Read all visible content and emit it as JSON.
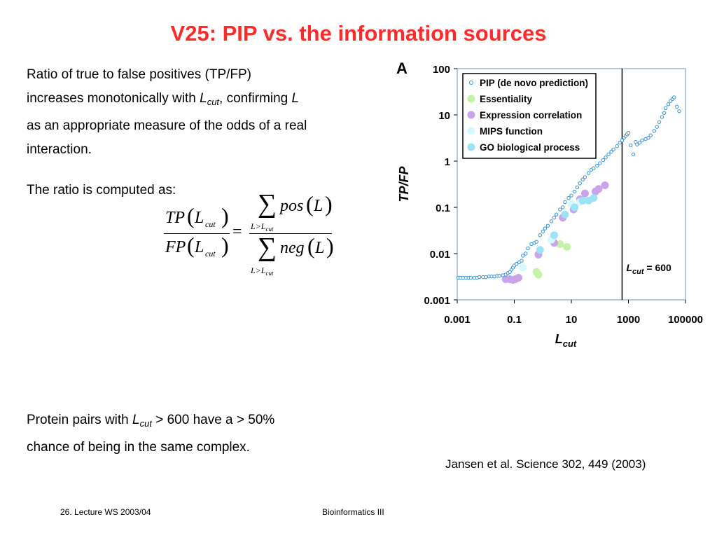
{
  "slide": {
    "title": "V25: PIP vs. the information sources",
    "para1_a": "Ratio of true to false positives (TP/FP)",
    "para1_b": "increases monotonically with ",
    "para1_L": "L",
    "para1_cut": "cut",
    "para1_c": ", confirming ",
    "para1_L2": "L",
    "para1_d": "as an appropriate measure of the odds of a real",
    "para1_e": "interaction.",
    "para2": "The ratio is computed as:",
    "para3_a": "Protein pairs with ",
    "para3_L": "L",
    "para3_cut": "cut",
    "para3_b": " > 600 have a > 50%",
    "para3_c": "chance of being in the same complex.",
    "citation": "Jansen et al. Science 302, 449 (2003)",
    "footer_left": "26. Lecture WS 2003/04",
    "footer_center": "Bioinformatics III"
  },
  "formula": {
    "tp": "TP",
    "fp": "FP",
    "lcut_L": "L",
    "lcut_cut": "cut",
    "equals": "=",
    "sum": "∑",
    "pos": "pos",
    "neg": "neg",
    "arg_L": "L",
    "lparen": "(",
    "rparen": ")",
    "cond_L": "L>L",
    "cond_cut": "cut"
  },
  "chart_data": {
    "type": "scatter",
    "panel_label": "A",
    "xlabel": "L",
    "xlabel_sub": "cut",
    "ylabel": "TP/FP",
    "x_scale": "log",
    "y_scale": "log",
    "xlim": [
      0.001,
      100000
    ],
    "ylim": [
      0.001,
      100
    ],
    "x_ticks": [
      0.001,
      0.1,
      10,
      1000,
      100000
    ],
    "x_tick_labels": [
      "0.001",
      "0.1",
      "10",
      "1000",
      "100000"
    ],
    "y_ticks": [
      0.001,
      0.01,
      0.1,
      1,
      10,
      100
    ],
    "y_tick_labels": [
      "0.001",
      "0.01",
      "0.1",
      "1",
      "10",
      "100"
    ],
    "legend_position": "top-left",
    "vline": {
      "x": 600,
      "label_L": "L",
      "label_cut": "cut",
      "label_value": " = 600"
    },
    "series": [
      {
        "name": "PIP (de novo prediction)",
        "color": "#3a8fc9",
        "marker": "open-circle",
        "points": [
          [
            0.0011,
            0.003
          ],
          [
            0.0013,
            0.003
          ],
          [
            0.0016,
            0.003
          ],
          [
            0.002,
            0.003
          ],
          [
            0.0025,
            0.003
          ],
          [
            0.003,
            0.003
          ],
          [
            0.004,
            0.003
          ],
          [
            0.005,
            0.003
          ],
          [
            0.006,
            0.0031
          ],
          [
            0.008,
            0.0031
          ],
          [
            0.01,
            0.0031
          ],
          [
            0.013,
            0.0032
          ],
          [
            0.016,
            0.0032
          ],
          [
            0.02,
            0.0032
          ],
          [
            0.025,
            0.0033
          ],
          [
            0.03,
            0.0033
          ],
          [
            0.04,
            0.0034
          ],
          [
            0.05,
            0.0035
          ],
          [
            0.06,
            0.0038
          ],
          [
            0.07,
            0.004
          ],
          [
            0.08,
            0.0045
          ],
          [
            0.09,
            0.005
          ],
          [
            0.1,
            0.0055
          ],
          [
            0.12,
            0.006
          ],
          [
            0.15,
            0.0065
          ],
          [
            0.18,
            0.007
          ],
          [
            0.2,
            0.009
          ],
          [
            0.25,
            0.01
          ],
          [
            0.3,
            0.013
          ],
          [
            0.4,
            0.016
          ],
          [
            0.5,
            0.017
          ],
          [
            0.6,
            0.018
          ],
          [
            0.8,
            0.025
          ],
          [
            1,
            0.03
          ],
          [
            1.2,
            0.035
          ],
          [
            1.5,
            0.04
          ],
          [
            2,
            0.05
          ],
          [
            2.5,
            0.06
          ],
          [
            3,
            0.07
          ],
          [
            4,
            0.09
          ],
          [
            5,
            0.1
          ],
          [
            6,
            0.13
          ],
          [
            8,
            0.16
          ],
          [
            10,
            0.18
          ],
          [
            13,
            0.22
          ],
          [
            16,
            0.27
          ],
          [
            20,
            0.33
          ],
          [
            25,
            0.4
          ],
          [
            30,
            0.45
          ],
          [
            40,
            0.55
          ],
          [
            50,
            0.65
          ],
          [
            60,
            0.7
          ],
          [
            80,
            0.8
          ],
          [
            100,
            0.9
          ],
          [
            130,
            1.05
          ],
          [
            160,
            1.2
          ],
          [
            200,
            1.4
          ],
          [
            250,
            1.6
          ],
          [
            300,
            1.8
          ],
          [
            400,
            2.1
          ],
          [
            500,
            2.5
          ],
          [
            600,
            2.8
          ],
          [
            700,
            3.2
          ],
          [
            800,
            3.5
          ],
          [
            900,
            3.8
          ],
          [
            1000,
            4.1
          ],
          [
            1200,
            2.2
          ],
          [
            1500,
            1.4
          ],
          [
            1800,
            2.6
          ],
          [
            2000,
            2.3
          ],
          [
            2500,
            2.5
          ],
          [
            3000,
            2.8
          ],
          [
            4000,
            3
          ],
          [
            5000,
            3.2
          ],
          [
            6000,
            3.6
          ],
          [
            8000,
            4.5
          ],
          [
            10000,
            5.5
          ],
          [
            12000,
            7
          ],
          [
            15000,
            9
          ],
          [
            18000,
            11
          ],
          [
            20000,
            14
          ],
          [
            25000,
            17
          ],
          [
            30000,
            20
          ],
          [
            35000,
            22
          ],
          [
            40000,
            24
          ],
          [
            50000,
            15
          ],
          [
            60000,
            12
          ]
        ]
      },
      {
        "name": "Essentiality",
        "color": "#c3f2a8",
        "marker": "filled-circle",
        "points": [
          [
            0.6,
            0.004
          ],
          [
            0.7,
            0.0035
          ],
          [
            4,
            0.016
          ],
          [
            7,
            0.014
          ]
        ]
      },
      {
        "name": "Expression correlation",
        "color": "#caa4ea",
        "marker": "filled-circle",
        "points": [
          [
            0.05,
            0.0028
          ],
          [
            0.07,
            0.0028
          ],
          [
            0.09,
            0.0027
          ],
          [
            0.11,
            0.0028
          ],
          [
            0.14,
            0.003
          ],
          [
            0.7,
            0.0095
          ],
          [
            2.5,
            0.017
          ],
          [
            5,
            0.06
          ],
          [
            12,
            0.09
          ],
          [
            20,
            0.15
          ],
          [
            30,
            0.2
          ],
          [
            70,
            0.22
          ],
          [
            90,
            0.25
          ],
          [
            150,
            0.3
          ]
        ]
      },
      {
        "name": "MIPS function",
        "color": "#d6f8ff",
        "marker": "filled-circle",
        "points": [
          [
            0.2,
            0.005
          ],
          [
            2,
            0.02
          ],
          [
            10,
            0.12
          ],
          [
            20,
            0.13
          ]
        ]
      },
      {
        "name": "GO biological process",
        "color": "#9ee2f5",
        "marker": "filled-circle",
        "points": [
          [
            0.8,
            0.012
          ],
          [
            2.5,
            0.025
          ],
          [
            6,
            0.07
          ],
          [
            13,
            0.1
          ],
          [
            25,
            0.14
          ],
          [
            40,
            0.14
          ],
          [
            60,
            0.16
          ]
        ]
      }
    ]
  }
}
